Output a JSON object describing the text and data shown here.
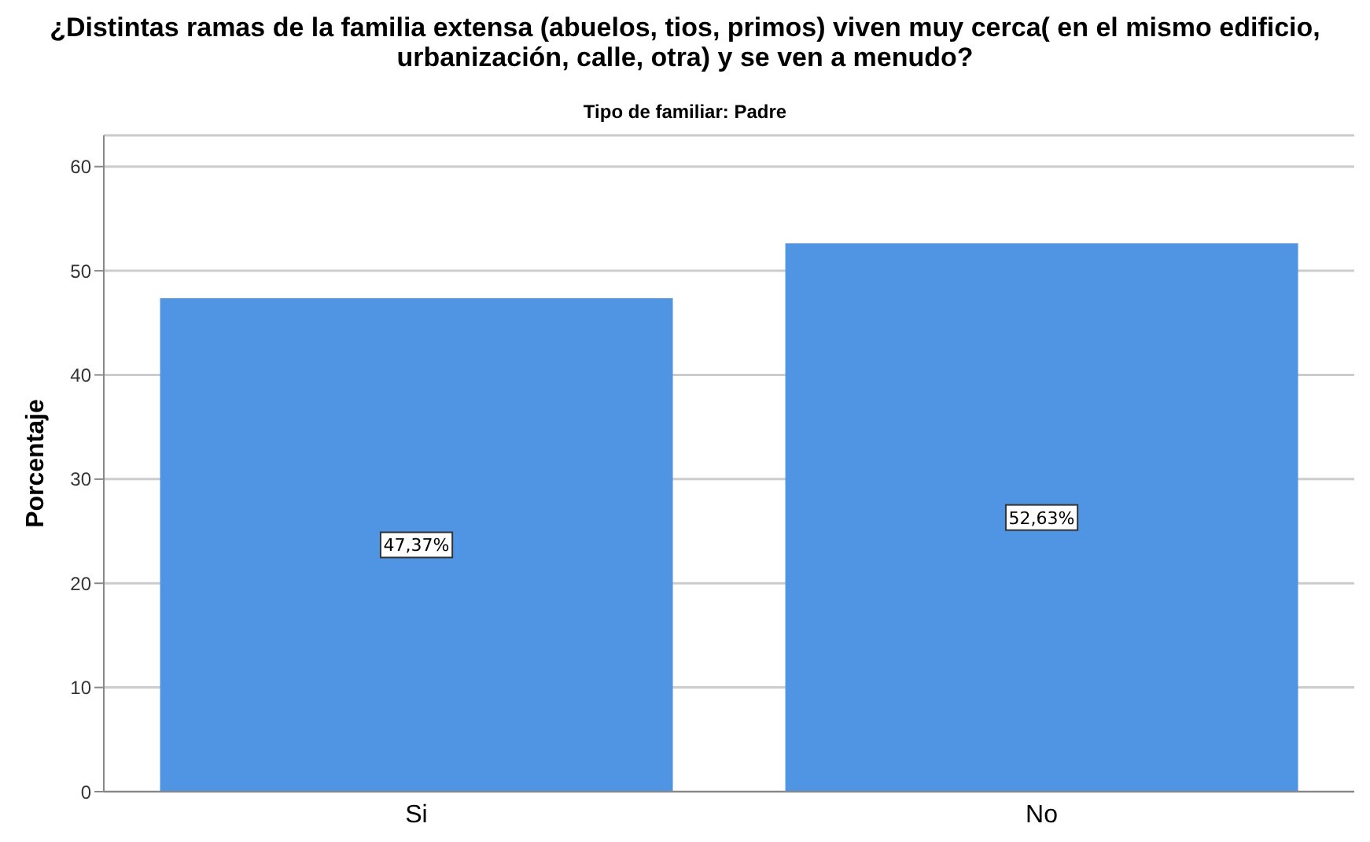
{
  "chart_data": {
    "type": "bar",
    "title": "¿Distintas ramas de la familia extensa (abuelos, tios, primos) viven muy cerca( en el mismo edificio, urbanización, calle, otra) y se ven a menudo?",
    "subtitle": "Tipo de familiar: Padre",
    "ylabel": "Porcentaje",
    "categories": [
      "Si",
      "No"
    ],
    "values": [
      47.37,
      52.63
    ],
    "value_labels": [
      "47,37%",
      "52,63%"
    ],
    "color": "#4f95e4",
    "ylim": [
      0,
      63
    ],
    "yticks": [
      0,
      10,
      20,
      30,
      40,
      50,
      60
    ],
    "grid": "y"
  }
}
